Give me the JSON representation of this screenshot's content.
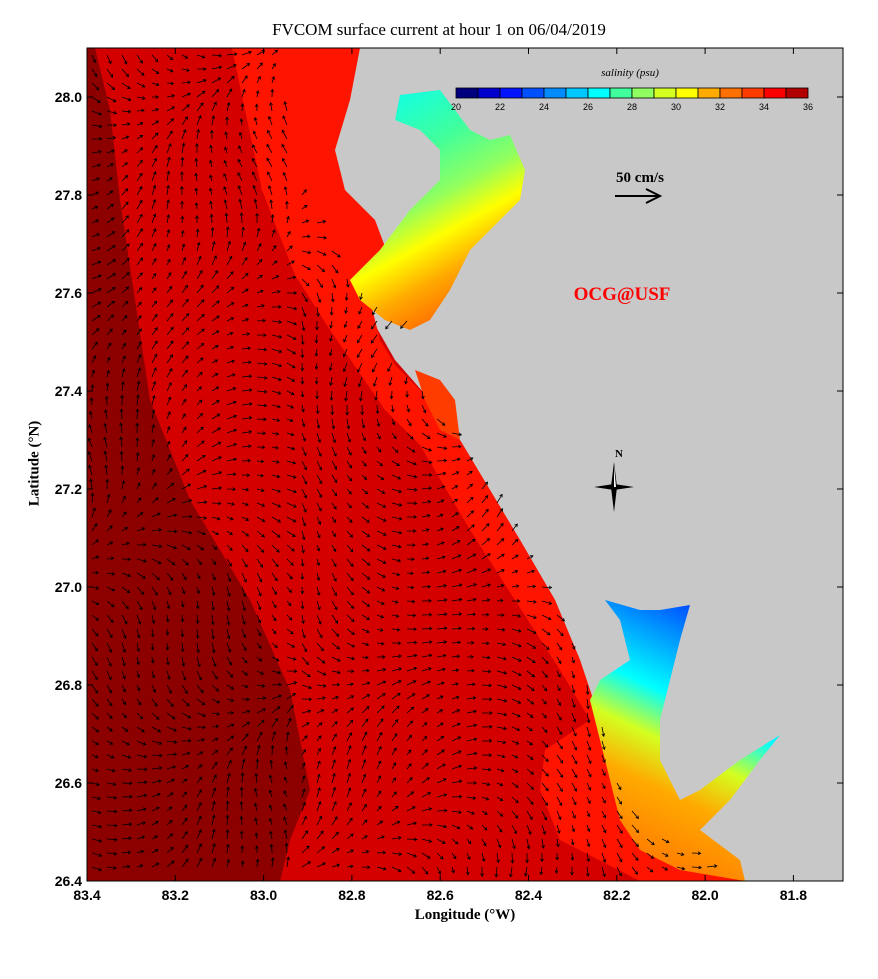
{
  "title": "FVCOM surface current at hour 1 on 06/04/2019",
  "xlabel": "Longitude (°W)",
  "ylabel": "Latitude (°N)",
  "x_ticks": [
    "83.4",
    "83.2",
    "83.0",
    "82.8",
    "82.6",
    "82.4",
    "82.2",
    "82.0",
    "81.8"
  ],
  "y_ticks": [
    "28.0",
    "27.8",
    "27.6",
    "27.4",
    "27.2",
    "27.0",
    "26.8",
    "26.6",
    "26.4"
  ],
  "colorbar": {
    "label": "salinity (psu)",
    "range": [
      20,
      36
    ],
    "tick_labels": [
      "20",
      "22",
      "24",
      "26",
      "28",
      "30",
      "32",
      "34",
      "36"
    ],
    "colors": [
      "#00007f",
      "#0000cc",
      "#0014ff",
      "#0050ff",
      "#008cff",
      "#00c8ff",
      "#00ffff",
      "#40ff9c",
      "#90ff60",
      "#d4ff20",
      "#ffff00",
      "#ffaa00",
      "#ff7000",
      "#ff3c00",
      "#ff0000",
      "#b00000"
    ]
  },
  "scale_arrow_label": "50 cm/s",
  "watermark": "OCG@USF",
  "north_label": "N",
  "colors": {
    "land": "#c8c8c8",
    "offshore_deep": "#8c0000",
    "offshore": "#d40000",
    "nearshore": "#ff1400"
  }
}
